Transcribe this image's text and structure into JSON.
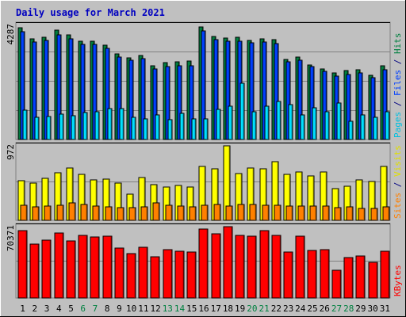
{
  "chart_data": {
    "type": "bar",
    "title": "Daily usage for March 2021",
    "days": [
      "1",
      "2",
      "3",
      "4",
      "5",
      "6",
      "7",
      "8",
      "9",
      "10",
      "11",
      "12",
      "13",
      "14",
      "15",
      "16",
      "17",
      "18",
      "19",
      "20",
      "21",
      "22",
      "23",
      "24",
      "25",
      "26",
      "27",
      "28",
      "29",
      "30",
      "31"
    ],
    "weekend_days": [
      "6",
      "7",
      "13",
      "14",
      "20",
      "21",
      "27",
      "28"
    ],
    "panels": [
      {
        "id": "top",
        "ymax_label": "4287",
        "ymax": 4287,
        "legend": [
          {
            "text": "Pages",
            "color": "#00c0e0"
          },
          {
            "text": "/",
            "color": "#000080"
          },
          {
            "text": "Files",
            "color": "#0040ff"
          },
          {
            "text": "/",
            "color": "#000080"
          },
          {
            "text": "Hits",
            "color": "#008040"
          }
        ],
        "series": [
          {
            "name": "Hits",
            "color": "#008040",
            "values": [
              4183,
              3783,
              3853,
              4113,
              3923,
              3683,
              3683,
              3553,
              3213,
              3063,
              3153,
              2773,
              2883,
              2913,
              2943,
              4213,
              3883,
              3823,
              3833,
              3733,
              3783,
              3743,
              3003,
              3083,
              2803,
              2653,
              2493,
              2583,
              2613,
              2423,
              2763
            ]
          },
          {
            "name": "Files",
            "color": "#0040ff",
            "values": [
              4053,
              3653,
              3733,
              3943,
              3793,
              3563,
              3563,
              3413,
              3103,
              2963,
              3033,
              2653,
              2733,
              2763,
              2783,
              4093,
              3753,
              3693,
              3703,
              3633,
              3653,
              3593,
              2903,
              2973,
              2733,
              2563,
              2383,
              2453,
              2503,
              2313,
              2633
            ]
          },
          {
            "name": "Pages",
            "color": "#00e0ff",
            "values": [
              1103,
              843,
              873,
              963,
              903,
              1013,
              1033,
              1173,
              1163,
              833,
              763,
              913,
              733,
              973,
              783,
              783,
              1143,
              1243,
              2103,
              1033,
              1243,
              1443,
              1313,
              913,
              1193,
              1033,
              1363,
              673,
              923,
              833,
              1033
            ]
          }
        ]
      },
      {
        "id": "middle",
        "ymax_label": "972",
        "ymax": 972,
        "legend": [
          {
            "text": "Sites",
            "color": "#ff8000"
          },
          {
            "text": "/",
            "color": "#000080"
          },
          {
            "text": "Visits",
            "color": "#e0e000"
          }
        ],
        "series": [
          {
            "name": "Visits",
            "color": "#ffff00",
            "values": [
              522,
              482,
              552,
              622,
              682,
              602,
              532,
              542,
              482,
              342,
              562,
              462,
              432,
              452,
              432,
              702,
              672,
              972,
              612,
              682,
              672,
              762,
              602,
              632,
              582,
              632,
              412,
              442,
              532,
              502,
              702
            ]
          },
          {
            "name": "Sites",
            "color": "#ff8000",
            "values": [
              192,
              172,
              182,
              192,
              232,
              202,
              182,
              172,
              162,
              162,
              172,
              232,
              192,
              182,
              172,
              192,
              202,
              182,
              202,
              202,
              192,
              192,
              182,
              182,
              182,
              182,
              162,
              172,
              152,
              152,
              172
            ]
          }
        ]
      },
      {
        "id": "bottom",
        "ymax_label": "70371",
        "ymax": 70371,
        "legend": [
          {
            "text": "KBytes",
            "color": "#ff0000"
          }
        ],
        "series": [
          {
            "name": "KBytes",
            "color": "#ff0000",
            "values": [
              66311,
              53211,
              56871,
              63811,
              55921,
              61891,
              59881,
              61231,
              48911,
              43631,
              50271,
              40791,
              47471,
              45971,
              45271,
              68401,
              62971,
              70371,
              61721,
              61181,
              66611,
              61481,
              45611,
              61181,
              47021,
              47371,
              27041,
              39601,
              41631,
              35301,
              46511
            ]
          }
        ]
      }
    ]
  }
}
